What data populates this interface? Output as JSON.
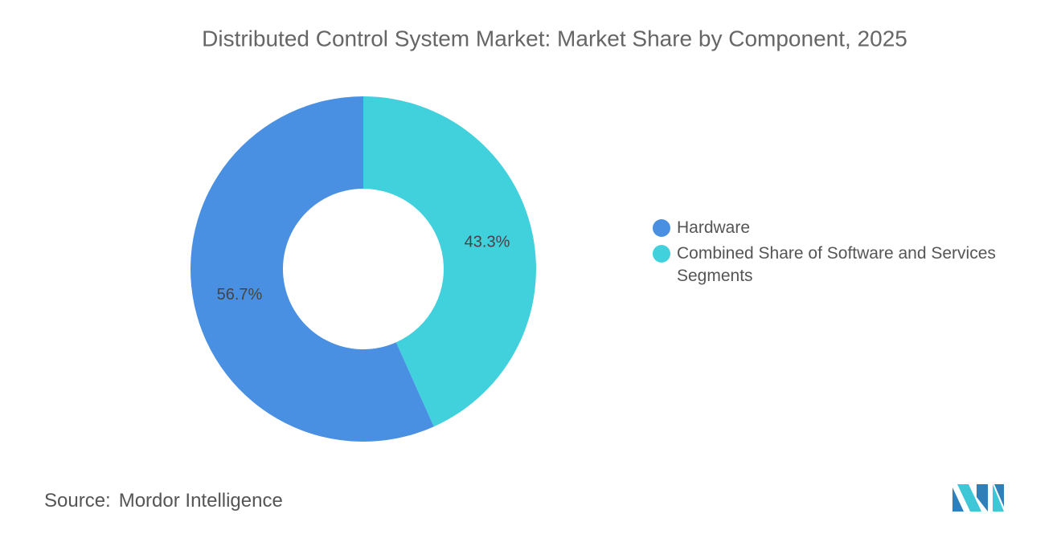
{
  "chart_data": {
    "type": "donut",
    "title": "Distributed Control System Market: Market Share by Component, 2025",
    "categories": [
      "Hardware",
      "Combined Share of Software and Services Segments"
    ],
    "values": [
      56.7,
      43.3
    ],
    "value_labels": [
      "56.7%",
      "43.3%"
    ],
    "colors": [
      "#4a90e2",
      "#41d1dc"
    ],
    "legend": "right"
  },
  "source": {
    "label": "Source:",
    "text": "Mordor Intelligence"
  }
}
